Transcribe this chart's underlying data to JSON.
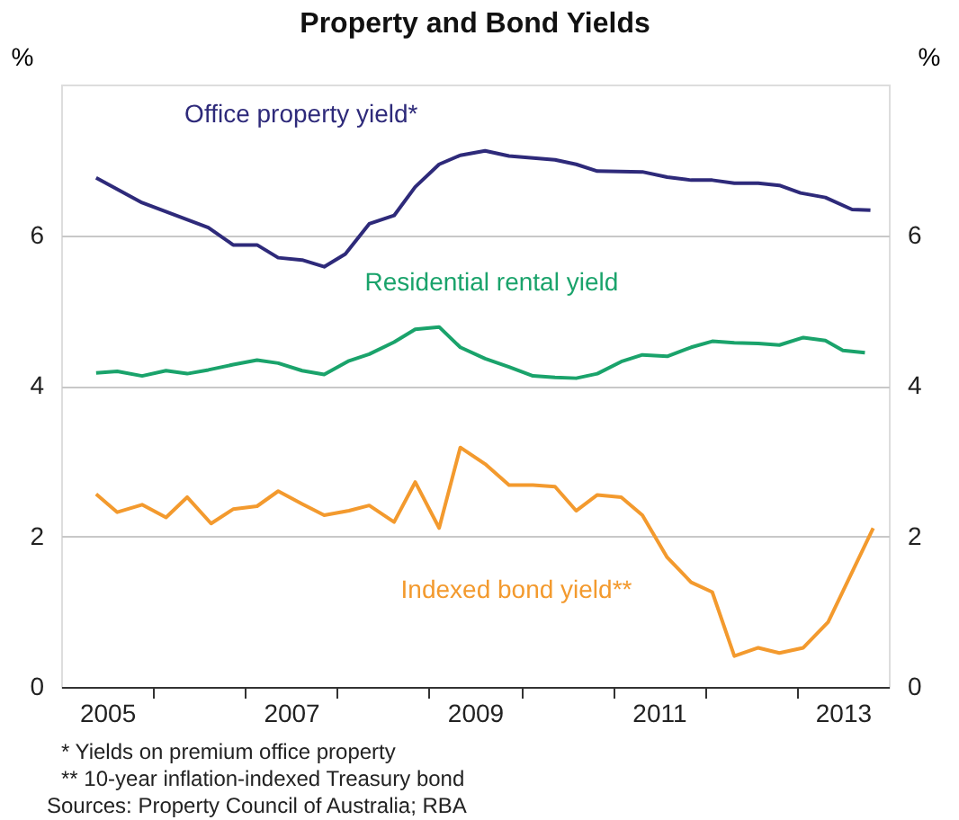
{
  "chart_data": {
    "type": "line",
    "title": "Property and Bond Yields",
    "ylabel": "%",
    "y2label": "%",
    "xlim": [
      2005,
      2014
    ],
    "xticks": [
      {
        "value": 2005.5,
        "label": "2005"
      },
      {
        "value": 2006,
        "label": null
      },
      {
        "value": 2007,
        "label": null
      },
      {
        "value": 2007.5,
        "label": "2007"
      },
      {
        "value": 2008,
        "label": null
      },
      {
        "value": 2009,
        "label": null
      },
      {
        "value": 2009.5,
        "label": "2009"
      },
      {
        "value": 2010,
        "label": null
      },
      {
        "value": 2011,
        "label": null
      },
      {
        "value": 2011.5,
        "label": "2011"
      },
      {
        "value": 2012,
        "label": null
      },
      {
        "value": 2013,
        "label": null
      },
      {
        "value": 2013.5,
        "label": "2013"
      }
    ],
    "ylim": [
      0,
      8
    ],
    "yticks": [
      0,
      2,
      4,
      6
    ],
    "y2lim": [
      0,
      8
    ],
    "y2ticks": [
      0,
      2,
      4,
      6
    ],
    "grid": "y",
    "legend": false,
    "line_style": "solid",
    "marker": "none",
    "series": [
      {
        "name": "Office property yield*",
        "color": "#2e2a7a",
        "x": [
          2005.38,
          2005.88,
          2006.6,
          2006.87,
          2007.13,
          2007.36,
          2007.62,
          2007.86,
          2008.09,
          2008.35,
          2008.62,
          2008.85,
          2009.11,
          2009.34,
          2009.61,
          2009.87,
          2010.37,
          2010.6,
          2010.83,
          2011.32,
          2011.59,
          2011.85,
          2012.08,
          2012.32,
          2012.58,
          2012.81,
          2013.04,
          2013.31,
          2013.6,
          2013.8
        ],
        "values": [
          6.76,
          6.43,
          6.1,
          5.87,
          5.87,
          5.7,
          5.67,
          5.58,
          5.75,
          6.15,
          6.26,
          6.64,
          6.94,
          7.06,
          7.12,
          7.05,
          7.0,
          6.94,
          6.85,
          6.84,
          6.77,
          6.73,
          6.73,
          6.69,
          6.69,
          6.66,
          6.56,
          6.5,
          6.34,
          6.33
        ]
      },
      {
        "name": "Residential rental yield",
        "color": "#1aa36b",
        "x": [
          2005.38,
          2005.61,
          2005.88,
          2006.14,
          2006.37,
          2006.6,
          2006.87,
          2007.13,
          2007.36,
          2007.62,
          2007.86,
          2008.13,
          2008.35,
          2008.62,
          2008.85,
          2009.11,
          2009.34,
          2009.61,
          2009.87,
          2010.13,
          2010.37,
          2010.6,
          2010.83,
          2011.09,
          2011.32,
          2011.59,
          2011.85,
          2012.08,
          2012.32,
          2012.58,
          2012.81,
          2013.07,
          2013.31,
          2013.5,
          2013.74
        ],
        "values": [
          4.17,
          4.19,
          4.13,
          4.2,
          4.16,
          4.21,
          4.28,
          4.34,
          4.3,
          4.2,
          4.15,
          4.33,
          4.42,
          4.58,
          4.75,
          4.78,
          4.51,
          4.36,
          4.25,
          4.13,
          4.11,
          4.1,
          4.16,
          4.32,
          4.41,
          4.39,
          4.51,
          4.59,
          4.57,
          4.56,
          4.54,
          4.64,
          4.6,
          4.47,
          4.44
        ]
      },
      {
        "name": "Indexed bond yield**",
        "color": "#f39a2e",
        "x": [
          2005.38,
          2005.61,
          2005.88,
          2006.14,
          2006.37,
          2006.63,
          2006.87,
          2007.13,
          2007.36,
          2007.62,
          2007.86,
          2008.13,
          2008.35,
          2008.62,
          2008.85,
          2009.11,
          2009.34,
          2009.61,
          2009.87,
          2010.13,
          2010.37,
          2010.6,
          2010.83,
          2011.09,
          2011.32,
          2011.59,
          2011.85,
          2012.08,
          2012.32,
          2012.58,
          2012.81,
          2013.07,
          2013.34,
          2013.83
        ],
        "values": [
          2.56,
          2.32,
          2.42,
          2.25,
          2.52,
          2.17,
          2.36,
          2.4,
          2.6,
          2.43,
          2.28,
          2.34,
          2.41,
          2.19,
          2.72,
          2.11,
          3.18,
          2.96,
          2.68,
          2.68,
          2.66,
          2.34,
          2.55,
          2.52,
          2.28,
          1.72,
          1.39,
          1.26,
          0.41,
          0.52,
          0.45,
          0.52,
          0.86,
          2.11
        ]
      }
    ],
    "annotations": [
      "*      Yields on premium office property",
      "**    10-year inflation-indexed Treasury bond",
      "Sources: Property Council of Australia; RBA"
    ]
  }
}
